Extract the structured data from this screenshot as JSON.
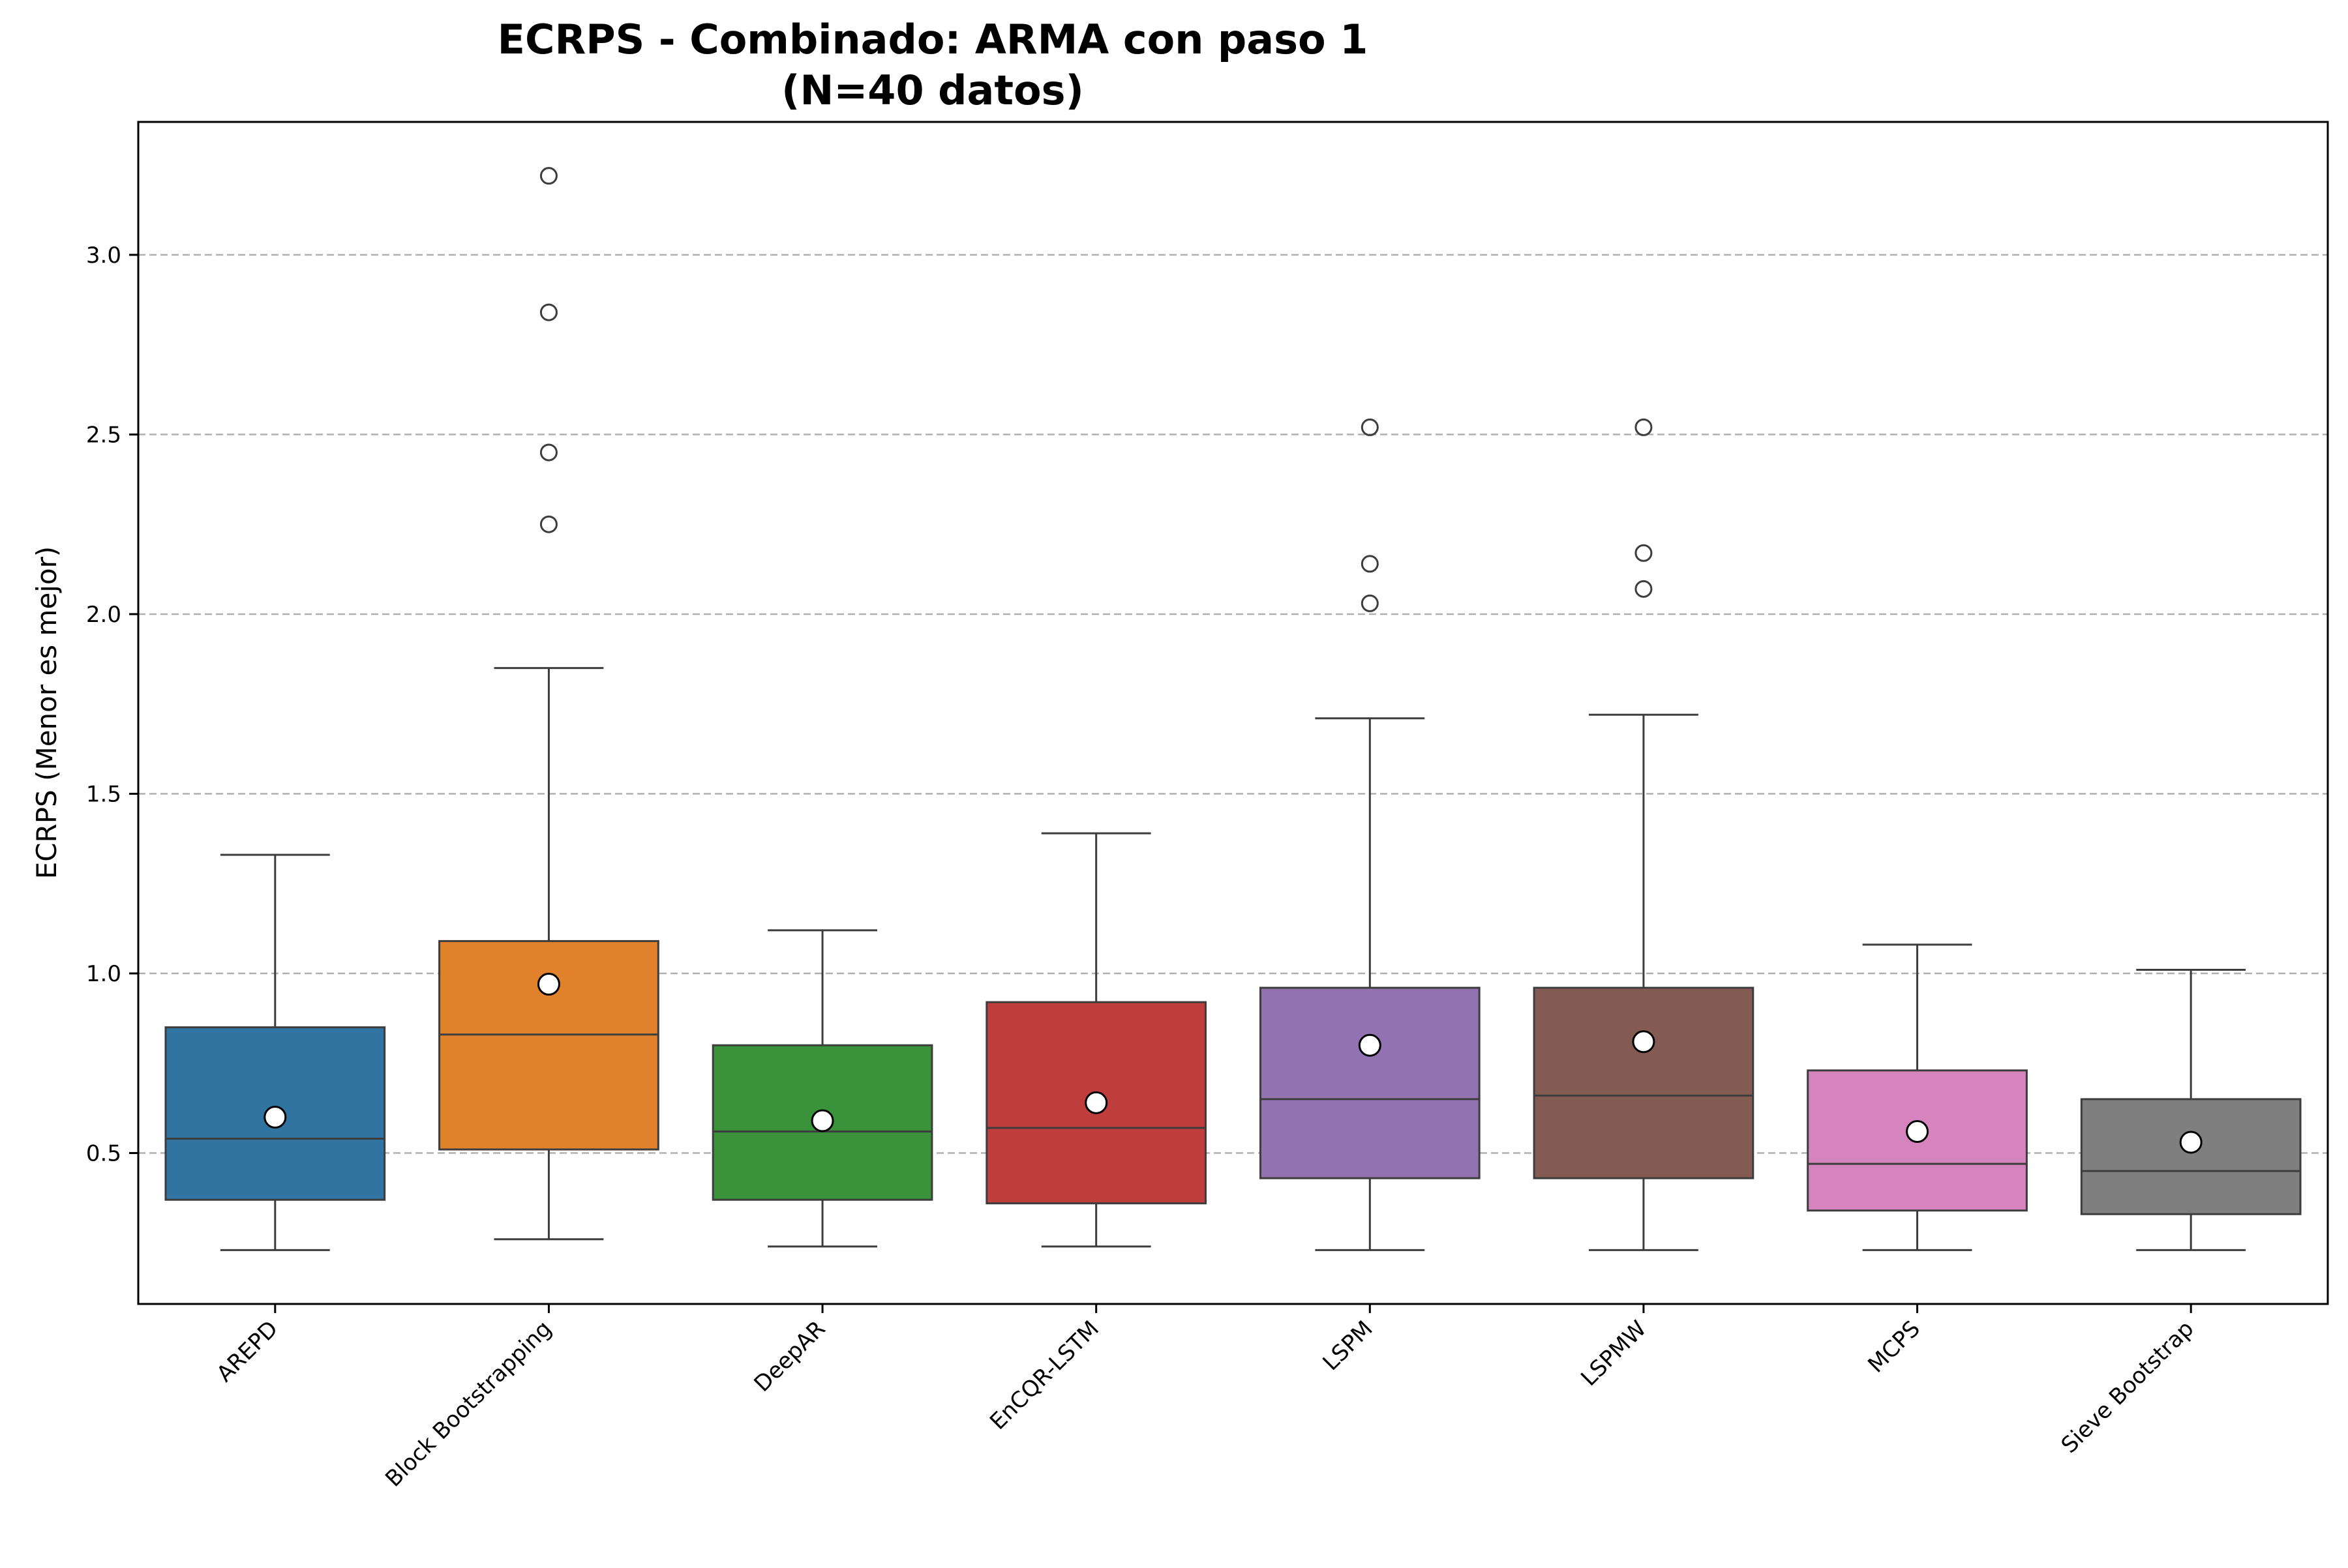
{
  "chart_data": {
    "type": "box",
    "title": "ECRPS - Combinado: ARMA con paso 1",
    "subtitle": "(N=40 datos)",
    "xlabel": "",
    "ylabel": "ECRPS (Menor es mejor)",
    "ylim": [
      0.08,
      3.37
    ],
    "yticks": [
      "0.5",
      "1.0",
      "1.5",
      "2.0",
      "2.5",
      "3.0"
    ],
    "grid": "y, dashed",
    "legend": "none",
    "categories": [
      "AREPD",
      "Block Bootstrapping",
      "DeepAR",
      "EnCQR-LSTM",
      "LSPM",
      "LSPMW",
      "MCPS",
      "Sieve Bootstrap"
    ],
    "series": [
      {
        "whisker_low": 0.23,
        "q1": 0.37,
        "median": 0.54,
        "q3": 0.85,
        "whisker_high": 1.33,
        "mean": 0.6,
        "outliers": [],
        "color": "#3274a1"
      },
      {
        "whisker_low": 0.26,
        "q1": 0.51,
        "median": 0.83,
        "q3": 1.09,
        "whisker_high": 1.85,
        "mean": 0.97,
        "outliers": [
          3.22,
          2.84,
          2.45,
          2.25
        ],
        "color": "#e1812c"
      },
      {
        "whisker_low": 0.24,
        "q1": 0.37,
        "median": 0.56,
        "q3": 0.8,
        "whisker_high": 1.12,
        "mean": 0.59,
        "outliers": [],
        "color": "#3a923a"
      },
      {
        "whisker_low": 0.24,
        "q1": 0.36,
        "median": 0.57,
        "q3": 0.92,
        "whisker_high": 1.39,
        "mean": 0.64,
        "outliers": [],
        "color": "#c03d3e"
      },
      {
        "whisker_low": 0.23,
        "q1": 0.43,
        "median": 0.65,
        "q3": 0.96,
        "whisker_high": 1.71,
        "mean": 0.8,
        "outliers": [
          2.52,
          2.14,
          2.03
        ],
        "color": "#9372b2"
      },
      {
        "whisker_low": 0.23,
        "q1": 0.43,
        "median": 0.66,
        "q3": 0.96,
        "whisker_high": 1.72,
        "mean": 0.81,
        "outliers": [
          2.52,
          2.17,
          2.07
        ],
        "color": "#845b53"
      },
      {
        "whisker_low": 0.23,
        "q1": 0.34,
        "median": 0.47,
        "q3": 0.73,
        "whisker_high": 1.08,
        "mean": 0.56,
        "outliers": [],
        "color": "#d684bd"
      },
      {
        "whisker_low": 0.23,
        "q1": 0.33,
        "median": 0.45,
        "q3": 0.65,
        "whisker_high": 1.01,
        "mean": 0.53,
        "outliers": [],
        "color": "#7f7f7f"
      }
    ]
  }
}
